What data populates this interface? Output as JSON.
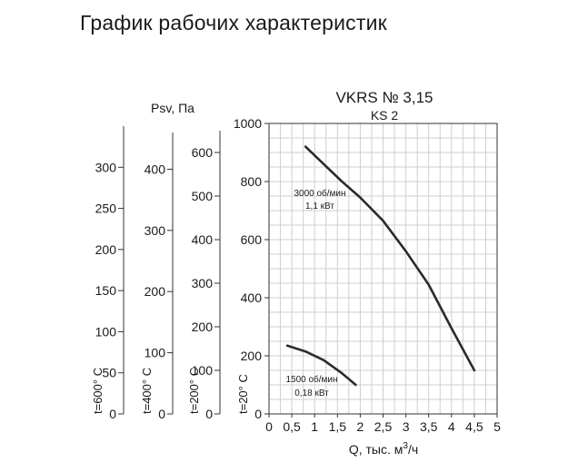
{
  "page": {
    "title": "График рабочих характеристик"
  },
  "chart_data": {
    "type": "line",
    "title": "VKRS № 3,15",
    "subtitle": "KS 2",
    "xlabel_main": "Q, тыс. м",
    "xlabel_sup": "3",
    "xlabel_tail": "/ч",
    "ylabel": "Psv, Па",
    "xlim": [
      0,
      5
    ],
    "ylim": [
      0,
      1000
    ],
    "grid": true,
    "x_ticks": [
      {
        "v": 0,
        "label": "0"
      },
      {
        "v": 0.5,
        "label": "0,5"
      },
      {
        "v": 1,
        "label": "1"
      },
      {
        "v": 1.5,
        "label": "1,5"
      },
      {
        "v": 2,
        "label": "2"
      },
      {
        "v": 2.5,
        "label": "2,5"
      },
      {
        "v": 3,
        "label": "3"
      },
      {
        "v": 3.5,
        "label": "3,5"
      },
      {
        "v": 4,
        "label": "4"
      },
      {
        "v": 4.5,
        "label": "4,5"
      },
      {
        "v": 5,
        "label": "5"
      }
    ],
    "y_ticks": [
      {
        "v": 0,
        "label": "0"
      },
      {
        "v": 200,
        "label": "200"
      },
      {
        "v": 400,
        "label": "400"
      },
      {
        "v": 600,
        "label": "600"
      },
      {
        "v": 800,
        "label": "800"
      },
      {
        "v": 1000,
        "label": "1000"
      }
    ],
    "extra_axes": [
      {
        "label": "t=600° C",
        "max": 350,
        "ticks": [
          {
            "v": 0,
            "label": "0"
          },
          {
            "v": 50,
            "label": "50"
          },
          {
            "v": 100,
            "label": "100"
          },
          {
            "v": 150,
            "label": "150"
          },
          {
            "v": 200,
            "label": "200"
          },
          {
            "v": 250,
            "label": "250"
          },
          {
            "v": 300,
            "label": "300"
          }
        ]
      },
      {
        "label": "t=400° C",
        "max": 460,
        "ticks": [
          {
            "v": 0,
            "label": "0"
          },
          {
            "v": 100,
            "label": "100"
          },
          {
            "v": 200,
            "label": "200"
          },
          {
            "v": 300,
            "label": "300"
          },
          {
            "v": 400,
            "label": "400"
          }
        ]
      },
      {
        "label": "t=200° C",
        "max": 650,
        "ticks": [
          {
            "v": 0,
            "label": "0"
          },
          {
            "v": 100,
            "label": "100"
          },
          {
            "v": 200,
            "label": "200"
          },
          {
            "v": 300,
            "label": "300"
          },
          {
            "v": 400,
            "label": "400"
          },
          {
            "v": 500,
            "label": "500"
          },
          {
            "v": 600,
            "label": "600"
          }
        ]
      },
      {
        "label": "t=20° C",
        "max": 1000,
        "ticks": []
      }
    ],
    "series": [
      {
        "label_line1": "3000 об/мин",
        "label_line2": "1,1 кВт",
        "x": [
          0.8,
          1.2,
          1.6,
          2.0,
          2.5,
          3.0,
          3.5,
          4.0,
          4.5
        ],
        "y": [
          920,
          860,
          800,
          745,
          665,
          560,
          445,
          295,
          150
        ]
      },
      {
        "label_line1": "1500 об/мин",
        "label_line2": "0,18 кВт",
        "x": [
          0.4,
          0.8,
          1.2,
          1.6,
          1.9
        ],
        "y": [
          235,
          215,
          185,
          140,
          100
        ]
      }
    ]
  }
}
